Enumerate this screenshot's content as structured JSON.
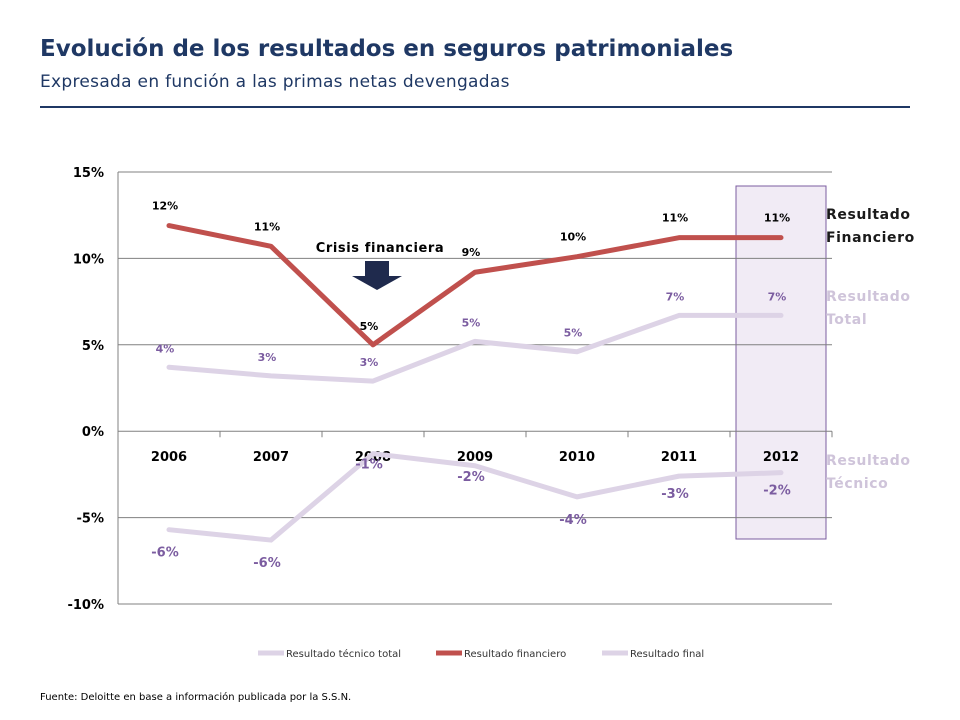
{
  "header": {
    "title": "Evolución de los resultados en seguros patrimoniales",
    "subtitle": "Expresada en función a las primas netas devengadas"
  },
  "source": "Fuente: Deloitte en base a  información publicada por la S.S.N.",
  "chart_data": {
    "type": "line",
    "x": [
      "2006",
      "2007",
      "2008",
      "2009",
      "2010",
      "2011",
      "2012"
    ],
    "ylim": [
      -10,
      15
    ],
    "yticks": [
      15,
      10,
      5,
      0,
      -5,
      -10
    ],
    "ytick_labels": [
      "15%",
      "10%",
      "5%",
      "0%",
      "-5%",
      "-10%"
    ],
    "grid": true,
    "legend_position": "bottom",
    "highlight_category": "2012",
    "series": [
      {
        "name": "Resultado técnico total",
        "color": "#ddd3e6",
        "values": [
          -5.7,
          -6.3,
          -1.3,
          -2.0,
          -3.8,
          -2.6,
          -2.4
        ],
        "labels": [
          "-6%",
          "-6%",
          "-1%",
          "-2%",
          "-4%",
          "-3%",
          "-2%"
        ],
        "label_color": "#7b5ca0"
      },
      {
        "name": "Resultado financiero",
        "color": "#c0504d",
        "values": [
          11.9,
          10.7,
          5.0,
          9.2,
          10.1,
          11.2,
          11.2
        ],
        "labels": [
          "12%",
          "11%",
          "5%",
          "9%",
          "10%",
          "11%",
          "11%"
        ],
        "label_color": "#000000"
      },
      {
        "name": "Resultado final",
        "color": "#ddd3e6",
        "values": [
          3.7,
          3.2,
          2.9,
          5.2,
          4.6,
          6.7,
          6.7
        ],
        "labels": [
          "4%",
          "3%",
          "3%",
          "5%",
          "5%",
          "7%",
          "7%"
        ],
        "label_color": "#7b5ca0"
      }
    ],
    "annotations": {
      "crisis": "Crisis financiera",
      "side_financiero": [
        "Resultado",
        "Financiero"
      ],
      "side_total": [
        "Resultado",
        "Total"
      ],
      "side_tecnico": [
        "Resultado",
        "Técnico"
      ]
    }
  }
}
